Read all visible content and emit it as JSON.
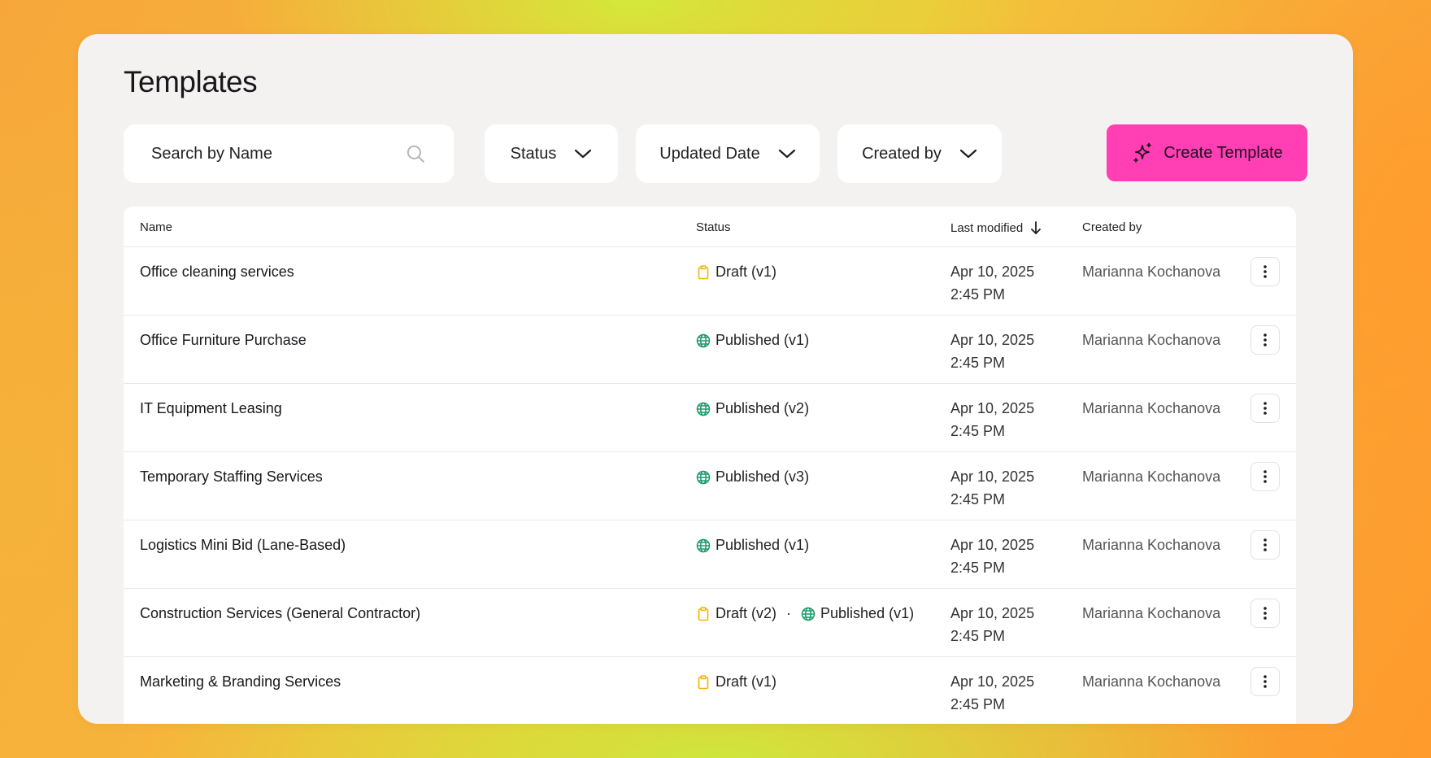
{
  "page": {
    "title": "Templates"
  },
  "toolbar": {
    "search_placeholder": "Search by Name",
    "status_filter": "Status",
    "updated_filter": "Updated Date",
    "created_filter": "Created by",
    "create_button": "Create Template"
  },
  "table": {
    "headers": {
      "name": "Name",
      "status": "Status",
      "modified": "Last modified",
      "created": "Created by"
    },
    "rows": [
      {
        "name": "Office cleaning services",
        "statuses": [
          {
            "kind": "draft",
            "label": "Draft (v1)"
          }
        ],
        "date": "Apr 10, 2025",
        "time": "2:45 PM",
        "created_by": "Marianna Kochanova"
      },
      {
        "name": "Office Furniture Purchase",
        "statuses": [
          {
            "kind": "published",
            "label": "Published (v1)"
          }
        ],
        "date": "Apr 10, 2025",
        "time": "2:45 PM",
        "created_by": "Marianna Kochanova"
      },
      {
        "name": "IT Equipment Leasing",
        "statuses": [
          {
            "kind": "published",
            "label": "Published (v2)"
          }
        ],
        "date": "Apr 10, 2025",
        "time": "2:45 PM",
        "created_by": "Marianna Kochanova"
      },
      {
        "name": "Temporary Staffing Services",
        "statuses": [
          {
            "kind": "published",
            "label": "Published (v3)"
          }
        ],
        "date": "Apr 10, 2025",
        "time": "2:45 PM",
        "created_by": "Marianna Kochanova"
      },
      {
        "name": "Logistics Mini Bid (Lane-Based)",
        "statuses": [
          {
            "kind": "published",
            "label": "Published (v1)"
          }
        ],
        "date": "Apr 10, 2025",
        "time": "2:45 PM",
        "created_by": "Marianna Kochanova"
      },
      {
        "name": "Construction Services (General Contractor)",
        "statuses": [
          {
            "kind": "draft",
            "label": "Draft (v2)"
          },
          {
            "kind": "published",
            "label": "Published (v1)"
          }
        ],
        "date": "Apr 10, 2025",
        "time": "2:45 PM",
        "created_by": "Marianna Kochanova"
      },
      {
        "name": "Marketing & Branding Services",
        "statuses": [
          {
            "kind": "draft",
            "label": "Draft (v1)"
          }
        ],
        "date": "Apr 10, 2025",
        "time": "2:45 PM",
        "created_by": "Marianna Kochanova"
      }
    ]
  },
  "colors": {
    "accent": "#ff3fb3",
    "draft": "#f5b400",
    "published": "#1a9a6b"
  },
  "icons": {
    "search": "search-icon",
    "chevron": "chevron-down-icon",
    "create": "sparkle-icon",
    "sort": "arrow-down-icon",
    "draft": "clipboard-icon",
    "published": "globe-icon",
    "more": "more-vertical-icon"
  }
}
